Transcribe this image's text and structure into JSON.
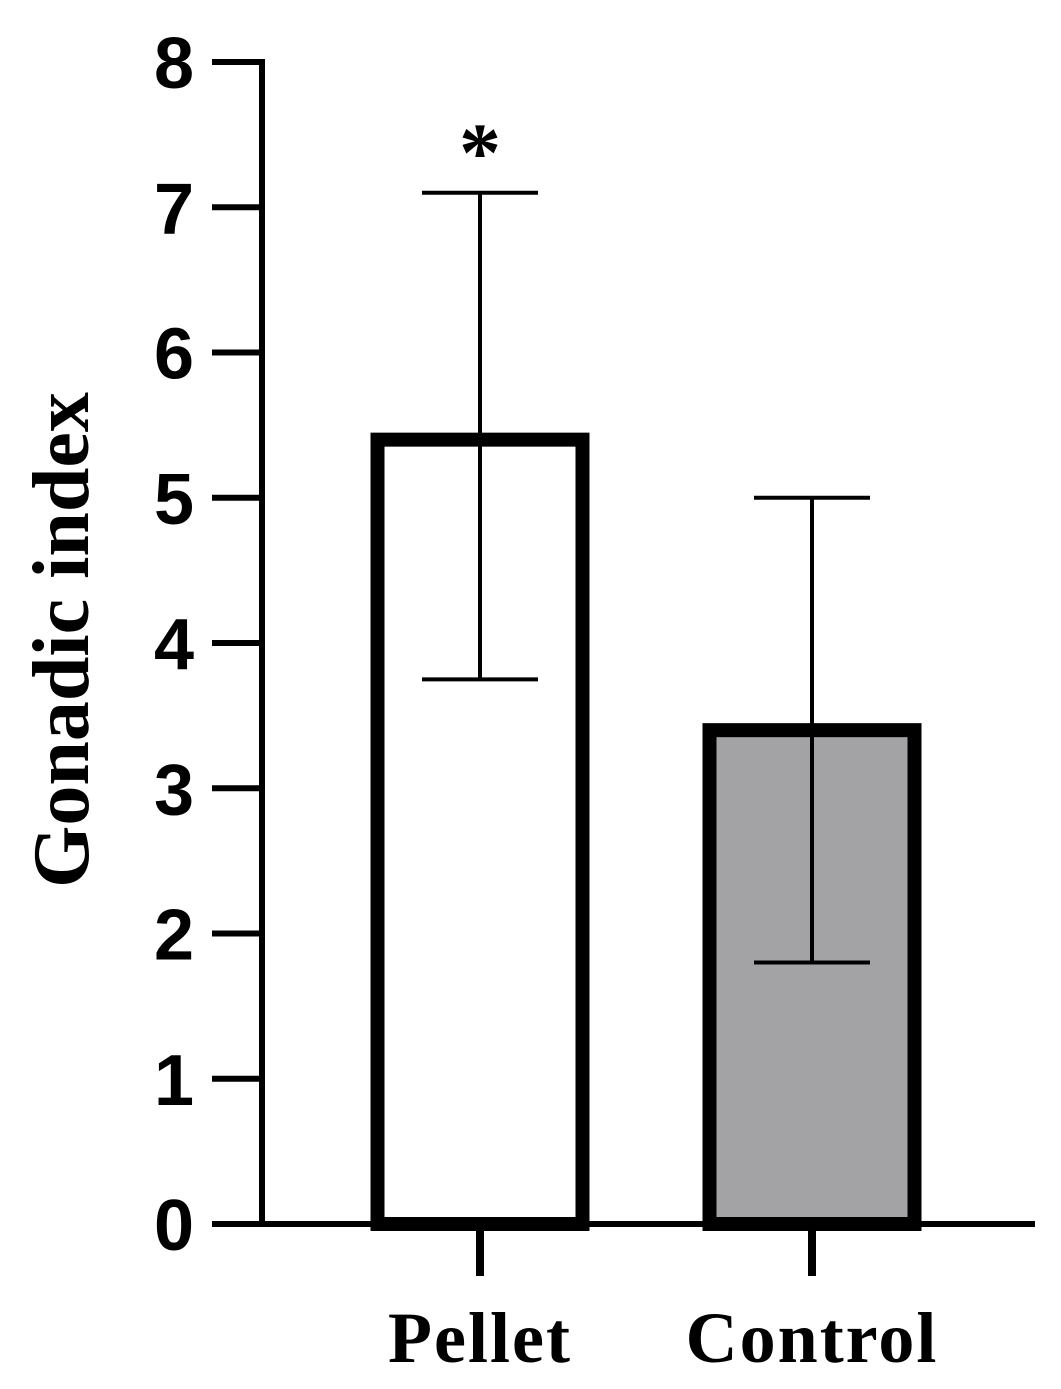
{
  "chart_data": {
    "type": "bar",
    "title": "",
    "xlabel": "",
    "ylabel": "Gonadic index",
    "categories": [
      "Pellet",
      "Control"
    ],
    "values": [
      5.4,
      3.4
    ],
    "error_low": [
      3.75,
      1.8
    ],
    "error_high": [
      7.1,
      5.0
    ],
    "annotations": [
      "*",
      ""
    ],
    "bar_fill": [
      "#ffffff",
      "#a3a3a6"
    ],
    "bar_stroke": "#000000",
    "ylim": [
      0,
      8
    ],
    "yticks": [
      "0",
      "1",
      "2",
      "3",
      "4",
      "5",
      "6",
      "7",
      "8"
    ],
    "grid": false,
    "legend": "none"
  }
}
